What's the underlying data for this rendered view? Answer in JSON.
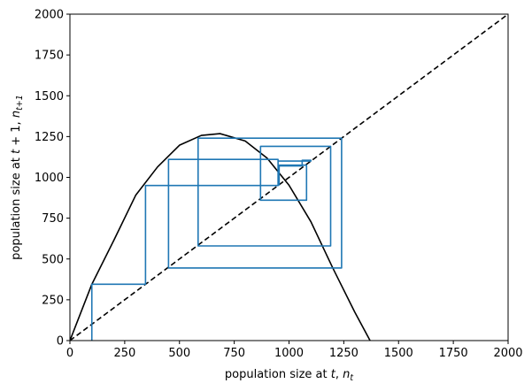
{
  "chart_data": {
    "type": "line",
    "xlabel": "population size at t, n_t",
    "ylabel": "population size at t + 1, n_{t+1}",
    "xlim": [
      0,
      2000
    ],
    "ylim": [
      0,
      2000
    ],
    "x_ticks": [
      0,
      250,
      500,
      750,
      1000,
      1250,
      1500,
      1750,
      2000
    ],
    "y_ticks": [
      0,
      250,
      500,
      750,
      1000,
      1250,
      1500,
      1750,
      2000
    ],
    "grid": false,
    "series": [
      {
        "kind": "curve",
        "color": "#000000",
        "style": "solid",
        "points": [
          [
            0,
            0
          ],
          [
            100,
            345
          ],
          [
            200,
            613
          ],
          [
            300,
            890
          ],
          [
            400,
            1064
          ],
          [
            500,
            1197
          ],
          [
            600,
            1257
          ],
          [
            685,
            1268
          ],
          [
            800,
            1223
          ],
          [
            900,
            1118
          ],
          [
            1000,
            952
          ],
          [
            1100,
            728
          ],
          [
            1200,
            444
          ],
          [
            1300,
            175
          ],
          [
            1370,
            0
          ]
        ]
      },
      {
        "kind": "line",
        "color": "#000000",
        "style": "dashed",
        "points": [
          [
            0,
            0
          ],
          [
            2000,
            2000
          ]
        ]
      },
      {
        "kind": "cobweb",
        "color": "#1f77b4",
        "style": "solid",
        "points": [
          [
            100,
            0
          ],
          [
            100,
            345
          ],
          [
            345,
            345
          ],
          [
            345,
            950
          ],
          [
            950,
            950
          ],
          [
            950,
            1100
          ],
          [
            1100,
            1100
          ],
          [
            1100,
            1105
          ],
          [
            1060,
            1105
          ],
          [
            1060,
            1070
          ],
          [
            950,
            1070
          ],
          [
            950,
            1110
          ],
          [
            450,
            1110
          ],
          [
            450,
            445
          ],
          [
            1240,
            445
          ],
          [
            1240,
            1240
          ],
          [
            585,
            1240
          ],
          [
            585,
            580
          ],
          [
            1190,
            580
          ],
          [
            1190,
            1190
          ],
          [
            870,
            1190
          ],
          [
            870,
            860
          ],
          [
            1080,
            860
          ],
          [
            1080,
            1075
          ],
          [
            955,
            1075
          ],
          [
            955,
            950
          ]
        ]
      }
    ]
  }
}
